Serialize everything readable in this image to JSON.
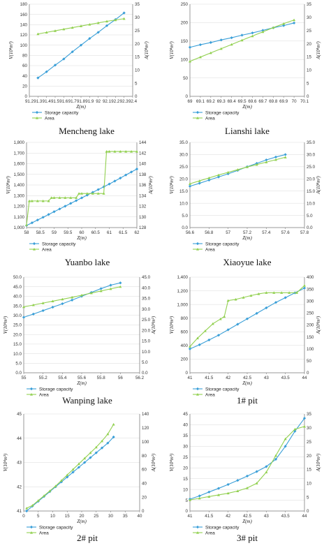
{
  "colors": {
    "storage": "#3a9fd8",
    "area": "#92d050",
    "axis": "#7f7f7f",
    "grid": "#d9d9d9"
  },
  "chart_data": [
    {
      "type": "line",
      "title": "Mencheng lake",
      "xlabel": "Z(m)",
      "ylabel_left": "V(10⁴m³)",
      "ylabel_right": "A(10⁴m²)",
      "xlim": [
        91.2,
        92.4
      ],
      "xstep": 0.1,
      "ylim_left": [
        0,
        180
      ],
      "ystep_left": 20,
      "ylim_right": [
        0,
        35
      ],
      "ystep_right": 5,
      "xticks": [
        "91.2",
        "91.3",
        "91.4",
        "91.5",
        "91.6",
        "91.7",
        "91.8",
        "91.9",
        "92",
        "92.1",
        "92.2",
        "92.3",
        "92.4"
      ],
      "yticks_left": [
        "0",
        "20",
        "40",
        "60",
        "80",
        "100",
        "120",
        "140",
        "160",
        "180"
      ],
      "yticks_right": [
        "0",
        "5",
        "10",
        "15",
        "20",
        "25",
        "30",
        "35"
      ],
      "legend": [
        "Storage capacity",
        "Area"
      ],
      "series": [
        {
          "name": "Storage capacity",
          "axis": "left",
          "marker": "diamond",
          "x": [
            91.3,
            91.4,
            91.5,
            91.6,
            91.7,
            91.8,
            91.9,
            92.0,
            92.1,
            92.2,
            92.3
          ],
          "y": [
            36,
            48,
            61,
            73,
            87,
            100,
            113,
            125,
            138,
            150,
            163
          ]
        },
        {
          "name": "Area",
          "axis": "right",
          "marker": "triangle",
          "x": [
            91.3,
            91.4,
            91.5,
            91.6,
            91.7,
            91.8,
            91.9,
            92.0,
            92.1,
            92.2,
            92.3
          ],
          "y": [
            23.7,
            24.3,
            24.9,
            25.5,
            26.1,
            26.7,
            27.3,
            27.9,
            28.5,
            29.0,
            29.5
          ]
        }
      ]
    },
    {
      "type": "line",
      "title": "Lianshi lake",
      "xlabel": "Z(m)",
      "ylabel_left": "V(10⁴m³)",
      "ylabel_right": "A(10⁴m²)",
      "xlim": [
        69,
        70.1
      ],
      "xstep": 0.1,
      "ylim_left": [
        0,
        250
      ],
      "ystep_left": 50,
      "ylim_right": [
        0,
        35
      ],
      "ystep_right": 5,
      "xticks": [
        "69",
        "69.1",
        "69.2",
        "69.3",
        "69.4",
        "69.5",
        "69.6",
        "69.7",
        "69.8",
        "69.9",
        "70",
        "70.1"
      ],
      "yticks_left": [
        "0",
        "50",
        "100",
        "150",
        "200",
        "250"
      ],
      "yticks_right": [
        "0",
        "5",
        "10",
        "15",
        "20",
        "25",
        "30",
        "35"
      ],
      "legend": [
        "Storage capacity",
        "Area"
      ],
      "series": [
        {
          "name": "Storage capacity",
          "axis": "left",
          "marker": "diamond",
          "x": [
            69.0,
            69.1,
            69.2,
            69.3,
            69.4,
            69.5,
            69.6,
            69.7,
            69.8,
            69.9,
            70.0
          ],
          "y": [
            133,
            140,
            146,
            153,
            159,
            166,
            172,
            179,
            186,
            192,
            199
          ]
        },
        {
          "name": "Area",
          "axis": "right",
          "marker": "triangle",
          "x": [
            69.0,
            69.1,
            69.2,
            69.3,
            69.4,
            69.5,
            69.6,
            69.7,
            69.8,
            69.9,
            70.0
          ],
          "y": [
            13.3,
            14.9,
            16.5,
            18.1,
            19.7,
            21.3,
            22.9,
            24.5,
            26.1,
            27.6,
            29.0
          ]
        }
      ]
    },
    {
      "type": "line",
      "title": "Yuanbo lake",
      "xlabel": "Z(m)",
      "ylabel_left": "V(10⁴m³)",
      "ylabel_right": "A(10⁴m²)",
      "xlim": [
        58,
        62
      ],
      "xstep": 0.5,
      "ylim_left": [
        1000,
        1800
      ],
      "ystep_left": 100,
      "ylim_right": [
        128,
        144
      ],
      "ystep_right": 2,
      "xticks": [
        "58",
        "58.5",
        "59",
        "59.5",
        "60",
        "60.5",
        "61",
        "61.5",
        "62"
      ],
      "yticks_left": [
        "1,000",
        "1,100",
        "1,200",
        "1,300",
        "1,400",
        "1,500",
        "1,600",
        "1,700",
        "1,800"
      ],
      "yticks_right": [
        "128",
        "130",
        "132",
        "134",
        "136",
        "138",
        "140",
        "142",
        "144"
      ],
      "legend": [
        "Storage capacity",
        "Area"
      ],
      "series": [
        {
          "name": "Storage capacity",
          "axis": "left",
          "marker": "diamond",
          "x": [
            58.0,
            58.2,
            58.4,
            58.6,
            58.8,
            59.0,
            59.2,
            59.4,
            59.6,
            59.8,
            60.0,
            60.2,
            60.4,
            60.6,
            60.8,
            61.0,
            61.2,
            61.4,
            61.6,
            61.8,
            62.0
          ],
          "y": [
            1020,
            1045,
            1071,
            1097,
            1123,
            1149,
            1175,
            1201,
            1227,
            1253,
            1279,
            1305,
            1331,
            1357,
            1383,
            1409,
            1437,
            1465,
            1494,
            1522,
            1550
          ]
        },
        {
          "name": "Area",
          "axis": "right",
          "marker": "triangle",
          "x": [
            58.0,
            58.1,
            58.2,
            58.4,
            58.6,
            58.8,
            58.9,
            59.0,
            59.2,
            59.4,
            59.6,
            59.8,
            59.9,
            60.0,
            60.2,
            60.4,
            60.6,
            60.8,
            60.9,
            61.0,
            61.2,
            61.4,
            61.6,
            61.8,
            62.0
          ],
          "y": [
            128.5,
            133.0,
            133.0,
            133.0,
            133.0,
            133.0,
            133.6,
            133.6,
            133.6,
            133.6,
            133.6,
            133.6,
            134.4,
            134.4,
            134.4,
            134.4,
            134.4,
            134.4,
            142.3,
            142.3,
            142.3,
            142.3,
            142.3,
            142.3,
            142.3
          ]
        }
      ]
    },
    {
      "type": "line",
      "title": "Xiaoyue lake",
      "xlabel": "Z(m)",
      "ylabel_left": "V(10⁴m³)",
      "ylabel_right": "A(10⁴m²)",
      "xlim": [
        56.6,
        57.8
      ],
      "xstep": 0.2,
      "ylim_left": [
        0,
        35
      ],
      "ystep_left": 5,
      "ylim_right": [
        0,
        35
      ],
      "ystep_right": 5,
      "xticks": [
        "56.6",
        "56.8",
        "57",
        "57.2",
        "57.4",
        "57.6",
        "57.8"
      ],
      "yticks_left": [
        "0.0",
        "5.0",
        "10.0",
        "15.0",
        "20.0",
        "25.0",
        "30.0",
        "35.0"
      ],
      "yticks_right": [
        "0.0",
        "5.0",
        "10.0",
        "15.0",
        "20.0",
        "25.0",
        "30.0",
        "35.0"
      ],
      "legend": [
        "Storage capacity",
        "Area"
      ],
      "series": [
        {
          "name": "Storage capacity",
          "axis": "left",
          "marker": "diamond",
          "x": [
            56.6,
            56.7,
            56.8,
            56.9,
            57.0,
            57.1,
            57.2,
            57.3,
            57.4,
            57.5,
            57.6
          ],
          "y": [
            17.0,
            18.2,
            19.5,
            20.8,
            22.1,
            23.5,
            25.0,
            26.4,
            27.8,
            29.0,
            30.0
          ]
        },
        {
          "name": "Area",
          "axis": "right",
          "marker": "triangle",
          "x": [
            56.6,
            56.7,
            56.8,
            56.9,
            57.0,
            57.1,
            57.2,
            57.3,
            57.4,
            57.5,
            57.6
          ],
          "y": [
            18.0,
            19.2,
            20.4,
            21.6,
            22.7,
            23.8,
            24.9,
            25.9,
            26.9,
            27.9,
            28.9
          ]
        }
      ]
    },
    {
      "type": "line",
      "title": "Wanping lake",
      "xlabel": "Z(m)",
      "ylabel_left": "V(10⁴m³)",
      "ylabel_right": "A(10⁴m²)",
      "xlim": [
        55,
        56.2
      ],
      "xstep": 0.2,
      "ylim_left": [
        0,
        50
      ],
      "ystep_left": 5,
      "ylim_right": [
        0,
        45
      ],
      "ystep_right": 5,
      "xticks": [
        "55",
        "55.2",
        "55.4",
        "55.6",
        "55.8",
        "56",
        "56.2"
      ],
      "yticks_left": [
        "0.0",
        "5.0",
        "10.0",
        "15.0",
        "20.0",
        "25.0",
        "30.0",
        "35.0",
        "40.0",
        "45.0",
        "50.0"
      ],
      "yticks_right": [
        "0.0",
        "5.0",
        "10.0",
        "15.0",
        "20.0",
        "25.0",
        "30.0",
        "35.0",
        "40.0",
        "45.0"
      ],
      "legend": [
        "Storage capacity",
        "Area"
      ],
      "series": [
        {
          "name": "Storage capacity",
          "axis": "left",
          "marker": "diamond",
          "x": [
            55.0,
            55.1,
            55.2,
            55.3,
            55.4,
            55.5,
            55.6,
            55.7,
            55.8,
            55.9,
            56.0
          ],
          "y": [
            29.0,
            30.7,
            32.5,
            34.3,
            36.1,
            38.0,
            40.0,
            42.0,
            44.0,
            45.8,
            47.0
          ]
        },
        {
          "name": "Area",
          "axis": "right",
          "marker": "triangle",
          "x": [
            55.0,
            55.1,
            55.2,
            55.3,
            55.4,
            55.5,
            55.6,
            55.7,
            55.8,
            55.9,
            56.0
          ],
          "y": [
            31.0,
            31.9,
            32.8,
            33.7,
            34.6,
            35.5,
            36.5,
            37.5,
            38.5,
            39.5,
            40.5
          ]
        }
      ]
    },
    {
      "type": "line",
      "title": "1# pit",
      "xlabel": "Z(m)",
      "ylabel_left": "V(10⁴m³)",
      "ylabel_right": "A(10⁴m²)",
      "xlim": [
        41,
        44
      ],
      "xstep": 0.5,
      "ylim_left": [
        0,
        1400
      ],
      "ystep_left": 200,
      "ylim_right": [
        0,
        400
      ],
      "ystep_right": 50,
      "xticks": [
        "41",
        "41.5",
        "42",
        "42.5",
        "43",
        "43.5",
        "44"
      ],
      "yticks_left": [
        "0",
        "200",
        "400",
        "600",
        "800",
        "1,000",
        "1,200",
        "1,400"
      ],
      "yticks_right": [
        "0",
        "50",
        "100",
        "150",
        "200",
        "250",
        "300",
        "350",
        "400"
      ],
      "legend": [
        "Storage capacity",
        "Area"
      ],
      "series": [
        {
          "name": "Storage capacity",
          "axis": "left",
          "marker": "diamond",
          "x": [
            41.0,
            41.25,
            41.5,
            41.75,
            42.0,
            42.25,
            42.5,
            42.75,
            43.0,
            43.25,
            43.5,
            43.75,
            44.0
          ],
          "y": [
            350,
            410,
            480,
            550,
            630,
            710,
            790,
            870,
            950,
            1030,
            1100,
            1170,
            1240
          ]
        },
        {
          "name": "Area",
          "axis": "right",
          "marker": "triangle",
          "x": [
            41.0,
            41.2,
            41.4,
            41.6,
            41.8,
            41.9,
            42.0,
            42.2,
            42.4,
            42.6,
            42.8,
            43.0,
            43.2,
            43.4,
            43.6,
            43.8,
            44.0
          ],
          "y": [
            110,
            145,
            175,
            205,
            225,
            235,
            302,
            307,
            315,
            323,
            330,
            335,
            335,
            335,
            335,
            335,
            365
          ]
        }
      ]
    },
    {
      "type": "line",
      "title": "2# pit",
      "xlabel": "Z(m)",
      "ylabel_left": "V(10⁴m³)",
      "ylabel_right": "A(10⁴m²)",
      "xlim": [
        0,
        40
      ],
      "xstep": 5,
      "ylim_left": [
        41,
        45
      ],
      "ystep_left": 1,
      "ylim_right": [
        0,
        140
      ],
      "ystep_right": 20,
      "xticks": [
        "0",
        "5",
        "10",
        "15",
        "20",
        "25",
        "30",
        "35",
        "40"
      ],
      "yticks_left": [
        "41",
        "42",
        "43",
        "44",
        "45"
      ],
      "yticks_right": [
        "0",
        "20",
        "40",
        "60",
        "80",
        "100",
        "120",
        "140"
      ],
      "legend": [
        "Storage capacity",
        "Area"
      ],
      "series": [
        {
          "name": "Storage capacity",
          "axis": "left",
          "marker": "diamond",
          "x": [
            1,
            3,
            5,
            7,
            9,
            11,
            13,
            15,
            17,
            19,
            21,
            23,
            25,
            27,
            29,
            31
          ],
          "y": [
            41.0,
            41.2,
            41.4,
            41.6,
            41.8,
            42.0,
            42.2,
            42.4,
            42.6,
            42.8,
            43.0,
            43.2,
            43.4,
            43.6,
            43.8,
            44.05
          ]
        },
        {
          "name": "Area",
          "axis": "right",
          "marker": "triangle",
          "x": [
            1,
            3,
            5,
            7,
            9,
            11,
            13,
            15,
            17,
            19,
            21,
            23,
            25,
            27,
            29,
            31
          ],
          "y": [
            4,
            8,
            15,
            22,
            29,
            36,
            44,
            52,
            60,
            68,
            76,
            84,
            92,
            101,
            111,
            125
          ]
        }
      ]
    },
    {
      "type": "line",
      "title": "3# pit",
      "xlabel": "Z(m)",
      "ylabel_left": "V(10⁴m³)",
      "ylabel_right": "A(10⁴m²)",
      "xlim": [
        41,
        44
      ],
      "xstep": 0.5,
      "ylim_left": [
        0,
        45
      ],
      "ystep_left": 5,
      "ylim_right": [
        0,
        35
      ],
      "ystep_right": 5,
      "xticks": [
        "41",
        "41.5",
        "42",
        "42.5",
        "43",
        "43.5",
        "44"
      ],
      "yticks_left": [
        "0",
        "5",
        "10",
        "15",
        "20",
        "25",
        "30",
        "35",
        "40",
        "45"
      ],
      "yticks_right": [
        "0",
        "5",
        "10",
        "15",
        "20",
        "25",
        "30",
        "35"
      ],
      "legend": [
        "Storage capacity",
        "Area"
      ],
      "series": [
        {
          "name": "Storage capacity",
          "axis": "left",
          "marker": "diamond",
          "x": [
            41.0,
            41.25,
            41.5,
            41.75,
            42.0,
            42.25,
            42.5,
            42.75,
            43.0,
            43.25,
            43.5,
            43.75,
            44.0
          ],
          "y": [
            5.5,
            7.0,
            8.8,
            10.5,
            12.3,
            14.2,
            16.2,
            18.3,
            20.6,
            24.0,
            30.0,
            37.0,
            43.0
          ]
        },
        {
          "name": "Area",
          "axis": "right",
          "marker": "triangle",
          "x": [
            41.0,
            41.25,
            41.5,
            41.75,
            42.0,
            42.25,
            42.5,
            42.75,
            43.0,
            43.25,
            43.5,
            43.75,
            44.0
          ],
          "y": [
            4.0,
            4.6,
            5.2,
            5.8,
            6.4,
            7.2,
            8.3,
            10.0,
            14.0,
            20.0,
            26.0,
            29.5,
            30.5
          ]
        }
      ]
    }
  ]
}
